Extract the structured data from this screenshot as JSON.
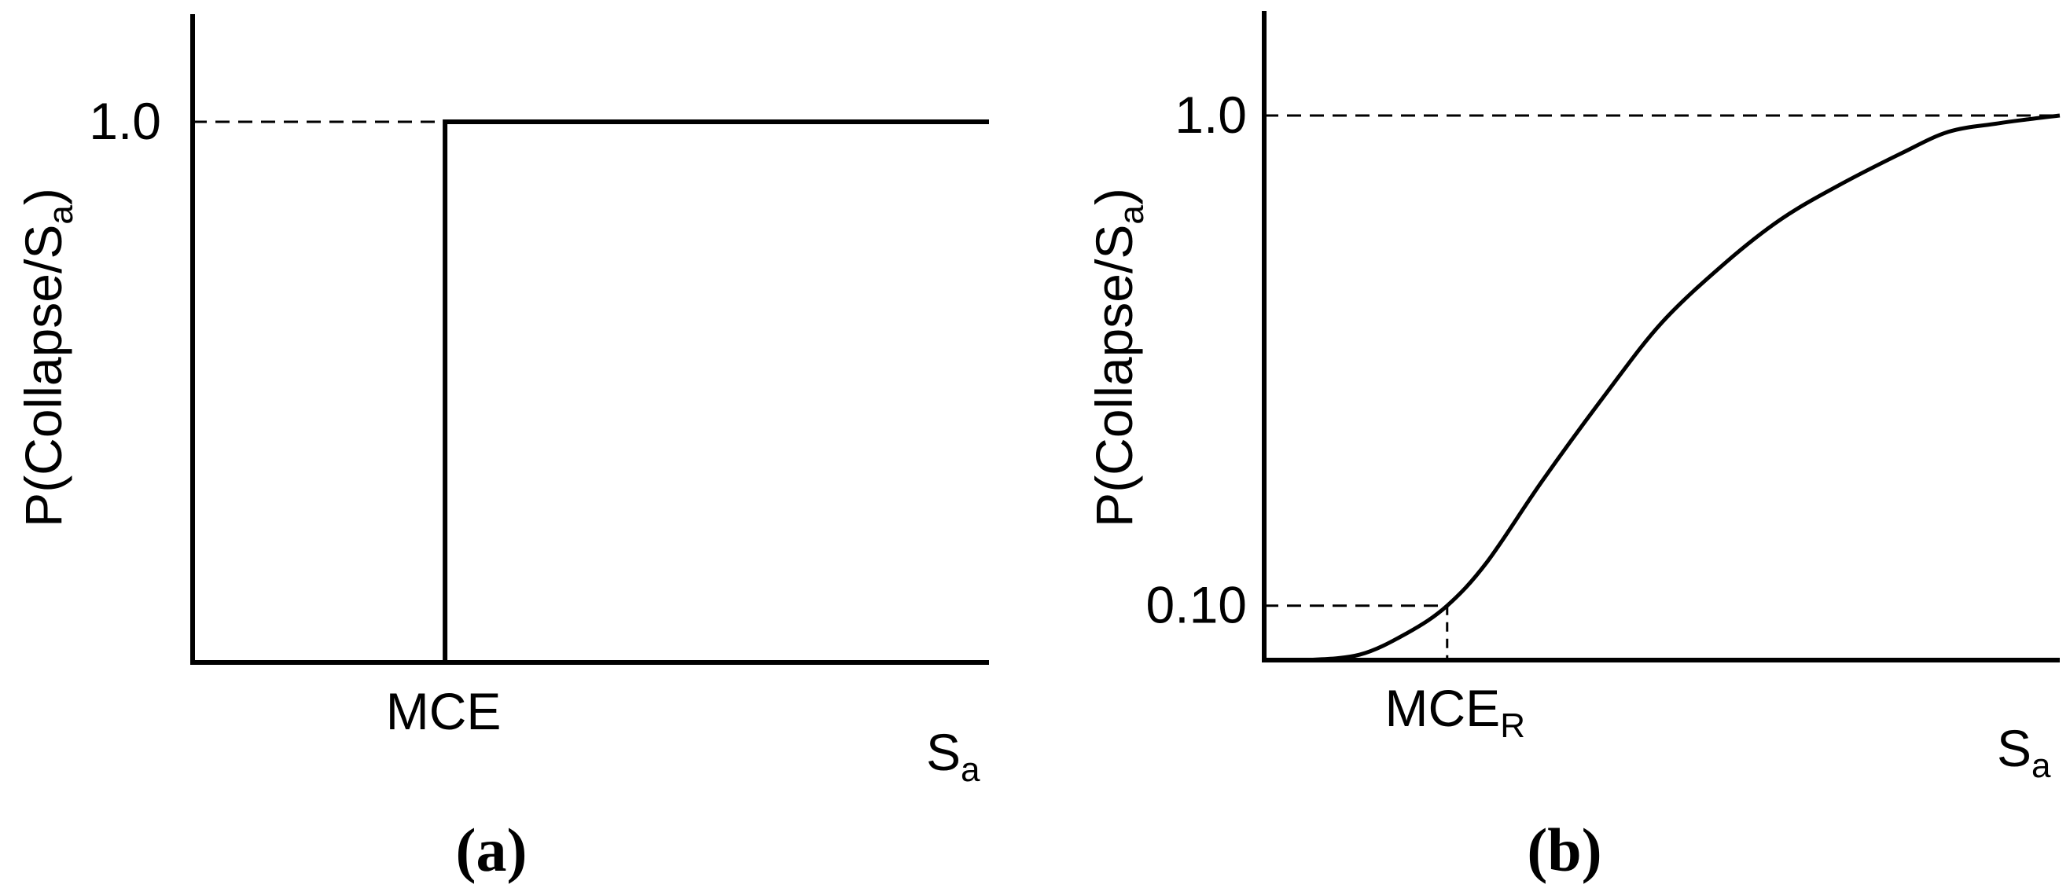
{
  "chart_data": [
    {
      "type": "line",
      "panel_label": "(a)",
      "ylabel_main": "P(Collapse/S",
      "ylabel_sub": "a",
      "ylabel_close": ")",
      "xlabel_main": "S",
      "xlabel_sub": "a",
      "x_tick_label": "MCE",
      "y_tick_label": "1.0",
      "ylim": [
        0,
        1.2
      ],
      "xlim": [
        0,
        1
      ],
      "series": [
        {
          "x": [
            0,
            0.317,
            0.317,
            1.0
          ],
          "y": [
            0,
            0,
            1.0,
            1.0
          ]
        }
      ],
      "reference_y": 1.0
    },
    {
      "type": "line",
      "panel_label": "(b)",
      "ylabel_main": "P(Collapse/S",
      "ylabel_sub": "a",
      "ylabel_close": ")",
      "xlabel_main": "S",
      "xlabel_sub": "a",
      "x_tick_label_main": "MCE",
      "x_tick_label_sub": "R",
      "y_tick_labels": [
        "0.10",
        "1.0"
      ],
      "ylim": [
        0,
        1.2
      ],
      "xlim": [
        0,
        1
      ],
      "mce_r_x": 0.23,
      "reference_low_y": 0.1,
      "reference_y": 1.0,
      "series": [
        {
          "x": [
            0,
            0.05,
            0.12,
            0.18,
            0.23,
            0.28,
            0.35,
            0.43,
            0.5,
            0.58,
            0.65,
            0.72,
            0.8,
            0.86,
            0.92,
            0.96,
            1.0
          ],
          "y": [
            0,
            0,
            0.01,
            0.05,
            0.1,
            0.18,
            0.33,
            0.49,
            0.62,
            0.73,
            0.81,
            0.87,
            0.93,
            0.97,
            0.985,
            0.993,
            1.0
          ]
        }
      ]
    }
  ]
}
